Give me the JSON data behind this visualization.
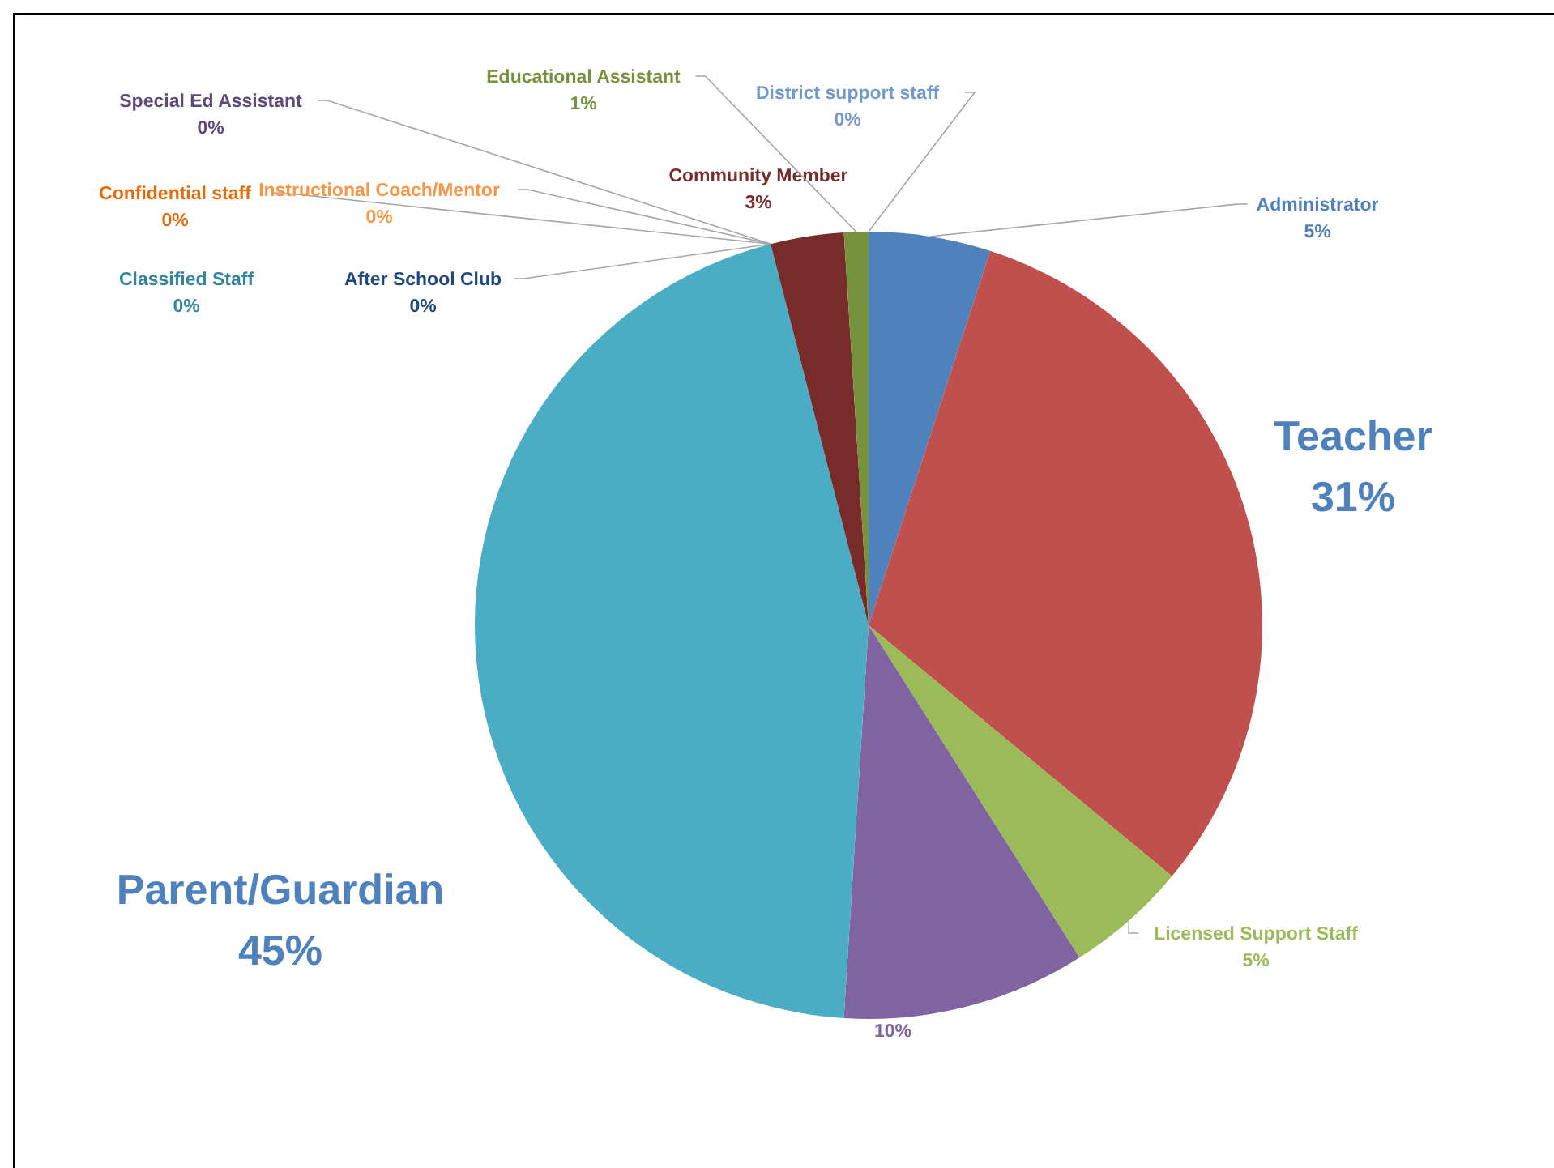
{
  "chart_data": {
    "type": "pie",
    "categories": [
      "Administrator",
      "Teacher",
      "Licensed Support Staff",
      null,
      "Parent/Guardian",
      "Classified Staff",
      "Confidential staff",
      "After School Club",
      "Instructional Coach/Mentor",
      "Special Ed Assistant",
      "Community Member",
      "Educational Assistant",
      "District support staff"
    ],
    "values": [
      5,
      31,
      5,
      10,
      45,
      0,
      0,
      0,
      0,
      0,
      3,
      1,
      0
    ],
    "colors": [
      "#4f81bd",
      "#c0504d",
      "#9bbb59",
      "#8064a2",
      "#4bacc6",
      "#31859c",
      "#e46c0a",
      "#1f497d",
      "#f79646",
      "#5f497a",
      "#772c2a",
      "#76923c",
      "#729aca"
    ],
    "value_labels": [
      "5%",
      "31%",
      "5%",
      "10%",
      "45%",
      "0%",
      "0%",
      "0%",
      "0%",
      "0%",
      "3%",
      "1%",
      "0%"
    ]
  }
}
